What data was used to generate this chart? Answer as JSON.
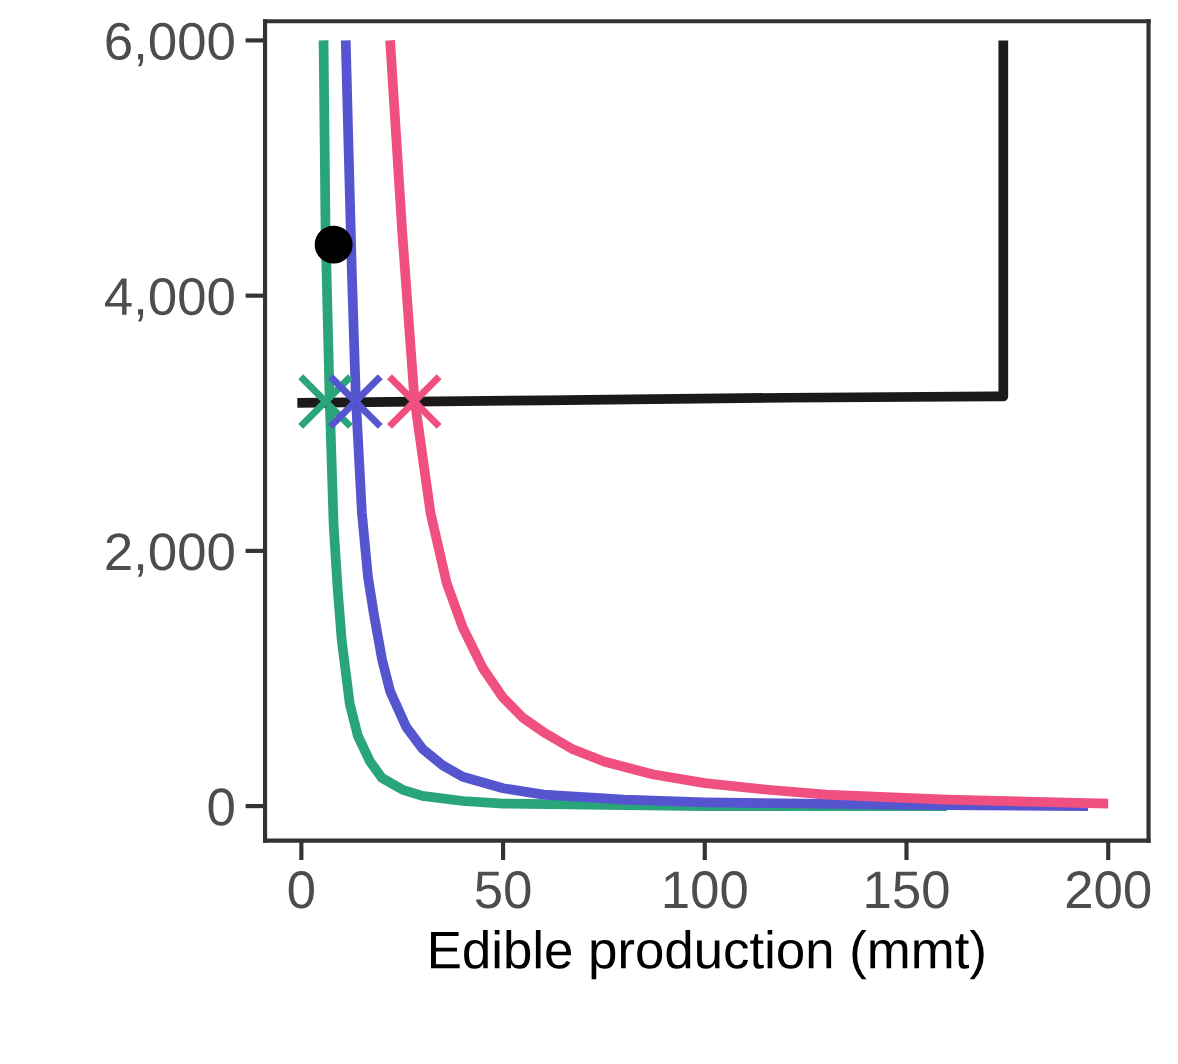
{
  "chart_data": {
    "type": "line",
    "xlabel": "Edible production (mmt)",
    "xlim": [
      -9,
      210
    ],
    "ylim": [
      -270,
      6150
    ],
    "xticks": [
      0,
      50,
      100,
      150,
      200
    ],
    "yticks": [
      {
        "value": 0,
        "label": "0"
      },
      {
        "value": 2000,
        "label": "2,000"
      },
      {
        "value": 4000,
        "label": "4,000"
      },
      {
        "value": 6000,
        "label": "6,000"
      }
    ],
    "grid": false,
    "legend": false,
    "marker": "none",
    "line_style": "solid",
    "series": [
      {
        "color": "#2aa57a",
        "x": [
          5.5,
          6,
          7,
          8,
          9,
          10,
          12,
          14,
          17,
          20,
          25,
          30,
          40,
          50,
          100,
          160
        ],
        "values": [
          6000,
          4500,
          3200,
          2200,
          1700,
          1300,
          800,
          550,
          350,
          220,
          130,
          80,
          40,
          20,
          0,
          0
        ]
      },
      {
        "color": "#5555d0",
        "x": [
          11,
          12.5,
          13.5,
          15,
          16.5,
          18,
          20,
          22,
          26,
          30,
          35,
          40,
          50,
          60,
          80,
          100,
          150,
          195
        ],
        "values": [
          6000,
          4200,
          3200,
          2300,
          1800,
          1500,
          1150,
          900,
          620,
          450,
          320,
          230,
          140,
          90,
          50,
          30,
          10,
          0
        ]
      },
      {
        "color": "#f05080",
        "x": [
          22,
          25,
          28,
          32,
          36,
          40,
          45,
          50,
          55,
          60,
          67,
          75,
          87,
          100,
          115,
          130,
          160,
          200
        ],
        "values": [
          6000,
          4500,
          3200,
          2300,
          1750,
          1400,
          1080,
          850,
          690,
          580,
          450,
          350,
          250,
          180,
          130,
          90,
          50,
          20
        ]
      },
      {
        "color": "#1a1a1a",
        "x": [
          -1,
          60,
          120,
          172,
          174,
          174
        ],
        "values": [
          3160,
          3180,
          3200,
          3210,
          3210,
          6000
        ]
      },
      {
        "type": "scatter",
        "marker": "circle",
        "color": "#000000",
        "x": [
          8
        ],
        "values": [
          4400
        ]
      },
      {
        "type": "scatter",
        "marker": "cross",
        "color": "#2aa57a",
        "x": [
          6
        ],
        "values": [
          3170
        ]
      },
      {
        "type": "scatter",
        "marker": "cross",
        "color": "#5555d0",
        "x": [
          13.4
        ],
        "values": [
          3170
        ]
      },
      {
        "type": "scatter",
        "marker": "cross",
        "color": "#f05080",
        "x": [
          28
        ],
        "values": [
          3170
        ]
      }
    ]
  }
}
